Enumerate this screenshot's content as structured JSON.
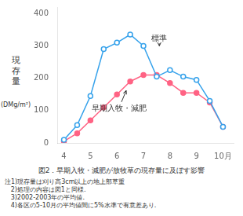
{
  "chart_data": {
    "type": "line",
    "title": "図2．早期入牧・減肥が放牧草の現存量に及ぼす影響",
    "notes": [
      "注1)現存量は刈り高3cm以上の地上部草重",
      "   2)処理の内容は図1と同様.",
      "   3)2002-2003年の平均値.",
      "   4)各区の5-10月の平均値間に5%水準で有意差あり."
    ],
    "ylabel": "現\n存\n量",
    "ylabel_unit": "(DMg/m²)",
    "x": [
      4.0,
      4.5,
      5.0,
      5.5,
      6.0,
      6.5,
      7.0,
      7.5,
      8.0,
      8.5,
      9.0,
      9.5,
      10.0
    ],
    "series": [
      {
        "name": "標準",
        "values": [
          10,
          55,
          145,
          290,
          310,
          335,
          300,
          205,
          225,
          205,
          195,
          130,
          50
        ],
        "marker": "open_circle"
      },
      {
        "name": "早期入牧・減肥",
        "values": [
          5,
          30,
          70,
          110,
          150,
          190,
          210,
          210,
          185,
          155,
          155,
          125,
          50
        ],
        "marker": "filled_circle"
      }
    ],
    "annotations": [
      {
        "text": "標準",
        "x": 7.3,
        "y": 315,
        "arrow_x": 7.6,
        "arrow_y": 300
      },
      {
        "text": "早期入牧・減肥",
        "x": 5.05,
        "y": 100,
        "arrow_x": 6.35,
        "arrow_y": 162
      }
    ],
    "xlim": [
      3.75,
      10.4
    ],
    "xticks": [
      4,
      5,
      6,
      7,
      8,
      9,
      {
        "value": 10,
        "label": "10月"
      }
    ],
    "ylim": [
      0,
      420
    ],
    "yticks": [
      0,
      100,
      200,
      300,
      400
    ],
    "grid": false
  }
}
